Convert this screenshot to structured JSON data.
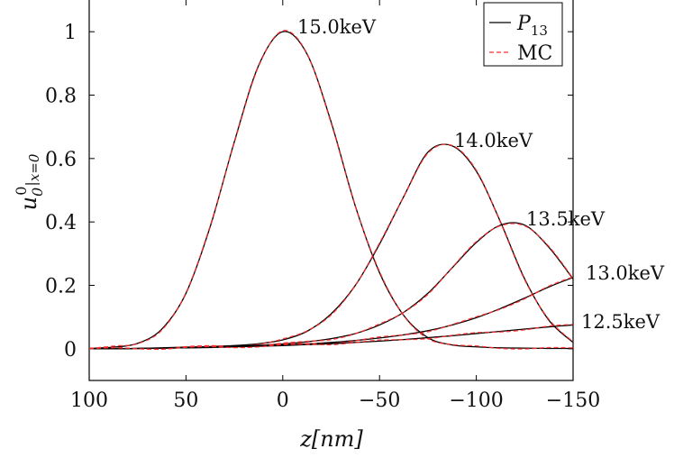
{
  "chart_data": {
    "type": "line",
    "title": "",
    "xlabel": "z[nm]",
    "ylabel": "u_0^0|_{x=0}",
    "xlim": [
      100,
      -150
    ],
    "ylim": [
      -0.1,
      1.1
    ],
    "xticks": [
      100,
      50,
      0,
      -50,
      -100,
      -150
    ],
    "xtick_labels": [
      "100",
      "50",
      "0",
      "−50",
      "−100",
      "−150"
    ],
    "yticks": [
      0,
      0.2,
      0.4,
      0.6,
      0.8,
      1
    ],
    "ytick_labels": [
      "0",
      "0.2",
      "0.4",
      "0.6",
      "0.8",
      "1"
    ],
    "grid": false,
    "legend": {
      "placement": "top-right",
      "entries": [
        {
          "label": "P",
          "subscript": "13",
          "color": "#000000",
          "dash": "solid"
        },
        {
          "label": "MC",
          "subscript": "",
          "color": "#ff2a2a",
          "dash": "dashed"
        }
      ]
    },
    "curves": [
      {
        "label": "15.0keV",
        "x": [
          100,
          87.5,
          75,
          62.5,
          50,
          37.5,
          25,
          12.5,
          0,
          -12.5,
          -25,
          -37.5,
          -50,
          -62.5,
          -75,
          -87.5,
          -100,
          -112.5,
          -125,
          -137.5,
          -150
        ],
        "y": [
          0.001,
          0.005,
          0.017,
          0.062,
          0.175,
          0.385,
          0.653,
          0.893,
          1.0,
          0.93,
          0.715,
          0.45,
          0.24,
          0.105,
          0.035,
          0.012,
          0.006,
          0.003,
          0.002,
          0.001,
          0.001
        ]
      },
      {
        "label": "14.0keV",
        "x": [
          100,
          87.5,
          75,
          62.5,
          50,
          37.5,
          25,
          12.5,
          0,
          -12.5,
          -25,
          -37.5,
          -50,
          -62.5,
          -75,
          -87.5,
          -100,
          -112.5,
          -125,
          -137.5,
          -150
        ],
        "y": [
          0.0,
          0.0,
          0.001,
          0.003,
          0.005,
          0.007,
          0.01,
          0.016,
          0.028,
          0.055,
          0.11,
          0.2,
          0.33,
          0.48,
          0.62,
          0.64,
          0.56,
          0.4,
          0.22,
          0.09,
          0.02
        ]
      },
      {
        "label": "13.5keV",
        "x": [
          100,
          87.5,
          75,
          62.5,
          50,
          37.5,
          25,
          12.5,
          0,
          -12.5,
          -25,
          -37.5,
          -50,
          -62.5,
          -75,
          -87.5,
          -100,
          -112.5,
          -125,
          -137.5,
          -150
        ],
        "y": [
          0.0,
          0.0,
          0.001,
          0.002,
          0.004,
          0.006,
          0.008,
          0.011,
          0.015,
          0.022,
          0.032,
          0.048,
          0.075,
          0.115,
          0.175,
          0.255,
          0.335,
          0.39,
          0.39,
          0.32,
          0.22
        ]
      },
      {
        "label": "13.0keV",
        "x": [
          100,
          87.5,
          75,
          62.5,
          50,
          37.5,
          25,
          12.5,
          0,
          -12.5,
          -25,
          -37.5,
          -50,
          -62.5,
          -75,
          -87.5,
          -100,
          -112.5,
          -125,
          -137.5,
          -150
        ],
        "y": [
          0.0,
          0.0,
          0.001,
          0.002,
          0.003,
          0.005,
          0.007,
          0.009,
          0.012,
          0.015,
          0.02,
          0.026,
          0.034,
          0.044,
          0.057,
          0.075,
          0.098,
          0.127,
          0.16,
          0.195,
          0.225
        ]
      },
      {
        "label": "12.5keV",
        "x": [
          100,
          87.5,
          75,
          62.5,
          50,
          37.5,
          25,
          12.5,
          0,
          -12.5,
          -25,
          -37.5,
          -50,
          -62.5,
          -75,
          -87.5,
          -100,
          -112.5,
          -125,
          -137.5,
          -150
        ],
        "y": [
          0.0,
          0.0,
          0.001,
          0.002,
          0.003,
          0.004,
          0.006,
          0.008,
          0.01,
          0.013,
          0.016,
          0.02,
          0.024,
          0.029,
          0.035,
          0.041,
          0.048,
          0.055,
          0.062,
          0.069,
          0.075
        ]
      }
    ]
  }
}
